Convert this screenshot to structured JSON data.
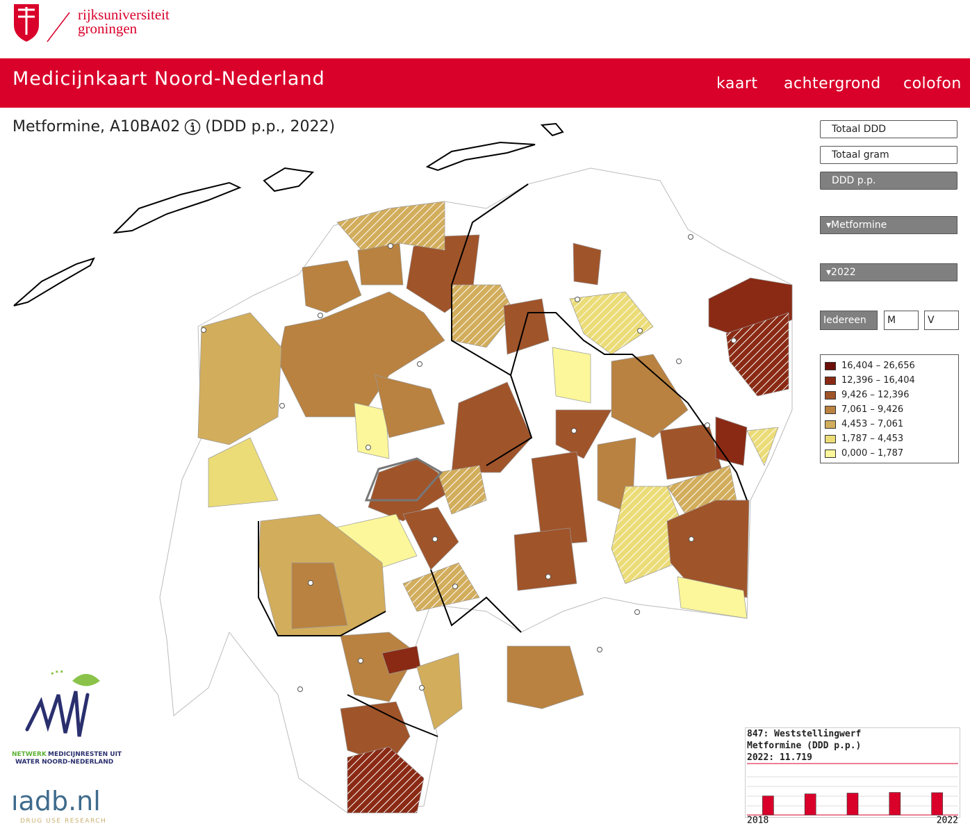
{
  "header": {
    "logo": [
      "rijksuniversiteit",
      "groningen"
    ],
    "title": "Medicijnkaart Noord-Nederland",
    "nav": [
      "kaart",
      "achtergrond",
      "colofon"
    ]
  },
  "map_title": "Metformine, A10BA02",
  "map_subtitle": "(DDD p.p., 2022)",
  "controls": {
    "measures": [
      "Totaal DDD",
      "Totaal gram",
      "DDD p.p."
    ],
    "selected_measure": 2,
    "medicine": "Metformine",
    "year": "2022",
    "groups": [
      "Iedereen",
      "M",
      "V"
    ],
    "selected_group": 0
  },
  "legend": [
    {
      "label": "16,404 – 26,656",
      "color": "#6b0f08"
    },
    {
      "label": "12,396 – 16,404",
      "color": "#8a2a14"
    },
    {
      "label": "9,426 – 12,396",
      "color": "#a0542a"
    },
    {
      "label": "7,061 – 9,426",
      "color": "#b98240"
    },
    {
      "label": "4,453 – 7,061",
      "color": "#d2ad5c"
    },
    {
      "label": "1,787 – 4,453",
      "color": "#ebdc78"
    },
    {
      "label": "0,000 – 1,787",
      "color": "#fbf79a"
    }
  ],
  "partners": {
    "nmwnn": [
      "NETWERK",
      "MEDICIJNRESTEN UIT",
      "WATER NOORD-NEDERLAND"
    ],
    "iadb": "ıadb.nl",
    "iadb_sub": "DRUG USE RESEARCH"
  },
  "chart_data": {
    "type": "bar",
    "title": [
      "847: Weststellingwerf",
      "Metformine (DDD p.p.)",
      "2022: 11.719"
    ],
    "categories": [
      "2018",
      null,
      null,
      null,
      "2022"
    ],
    "values": [
      10.0,
      11.1,
      11.5,
      11.85,
      11.719
    ],
    "color": "#d9002a",
    "ylim": [
      0,
      26.656
    ]
  }
}
